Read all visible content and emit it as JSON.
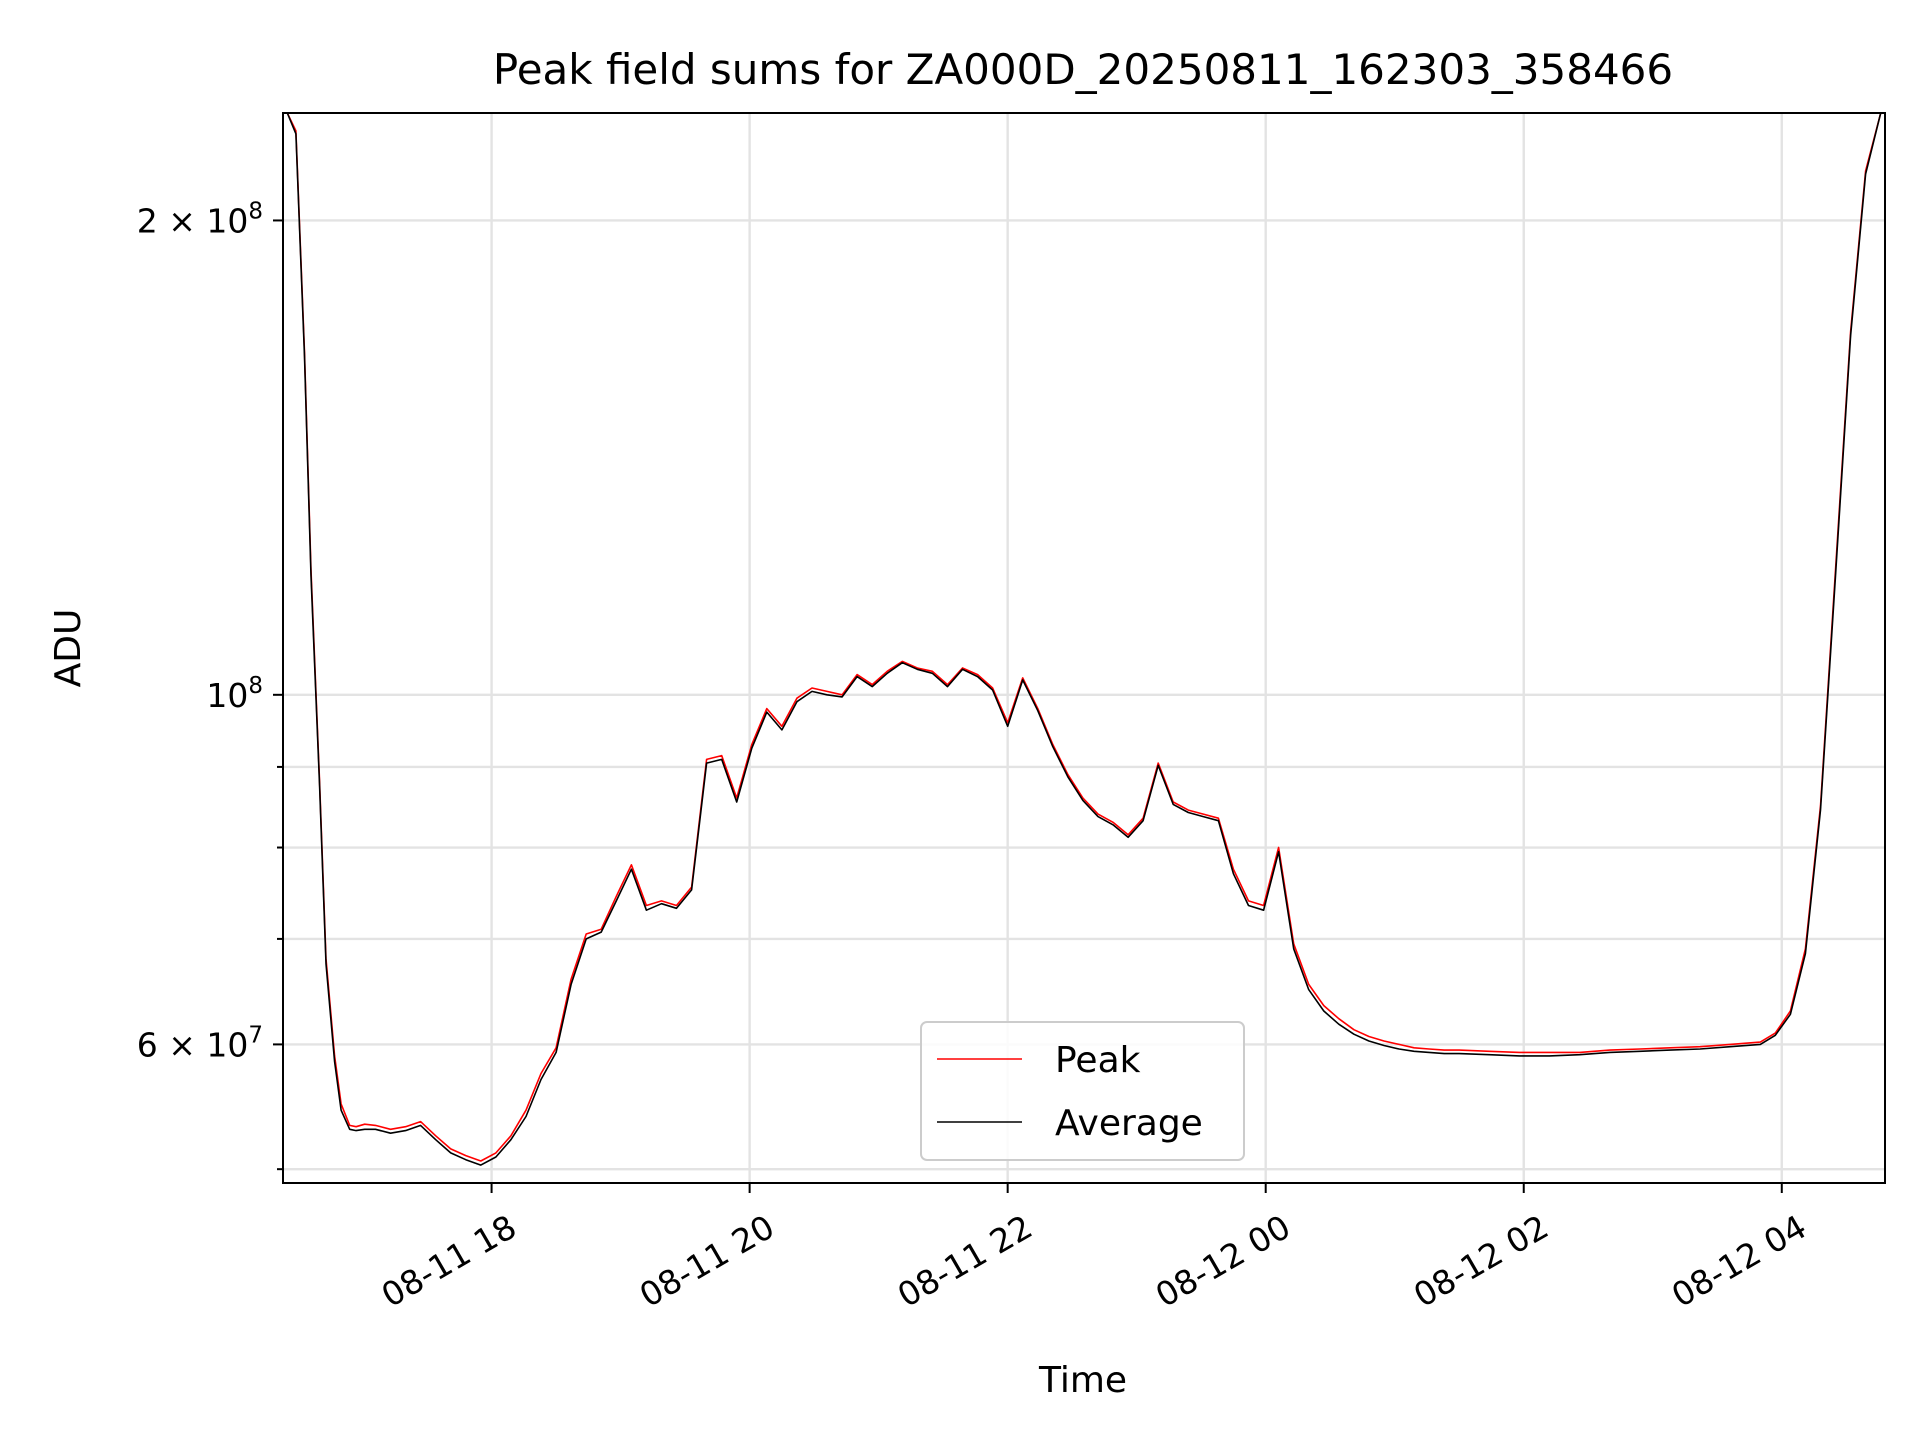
{
  "chart_data": {
    "type": "line",
    "title": "Peak field sums for ZA000D_20250811_162303_358466",
    "xlabel": "Time",
    "ylabel": "ADU",
    "xlim": [
      "2025-08-11 16:23",
      "2025-08-12 04:48"
    ],
    "ylim": [
      49000000,
      234000000
    ],
    "yscale": "log",
    "grid": true,
    "legend": "lower-center",
    "x_ticks": [
      {
        "value": "2025-08-11 18:00",
        "label": "08-11 18"
      },
      {
        "value": "2025-08-11 20:00",
        "label": "08-11 20"
      },
      {
        "value": "2025-08-11 22:00",
        "label": "08-11 22"
      },
      {
        "value": "2025-08-12 00:00",
        "label": "08-12 00"
      },
      {
        "value": "2025-08-12 02:00",
        "label": "08-12 02"
      },
      {
        "value": "2025-08-12 04:00",
        "label": "08-12 04"
      }
    ],
    "y_major_ticks": [
      {
        "value": 60000000,
        "label": "6 × 10",
        "exp": "7"
      },
      {
        "value": 100000000,
        "label": "10",
        "exp": "8"
      },
      {
        "value": 200000000,
        "label": "2 × 10",
        "exp": "8"
      }
    ],
    "y_minor_ticks": [
      50000000,
      70000000,
      80000000,
      90000000
    ],
    "series": [
      {
        "name": "Peak",
        "color": "#ff0000",
        "x": [
          "2025-08-11 16:25",
          "2025-08-11 16:29",
          "2025-08-11 16:33",
          "2025-08-11 16:36",
          "2025-08-11 16:40",
          "2025-08-11 16:43",
          "2025-08-11 16:47",
          "2025-08-11 16:50",
          "2025-08-11 16:54",
          "2025-08-11 16:57",
          "2025-08-11 17:01",
          "2025-08-11 17:06",
          "2025-08-11 17:13",
          "2025-08-11 17:20",
          "2025-08-11 17:27",
          "2025-08-11 17:34",
          "2025-08-11 17:41",
          "2025-08-11 17:48",
          "2025-08-11 17:55",
          "2025-08-11 18:02",
          "2025-08-11 18:09",
          "2025-08-11 18:16",
          "2025-08-11 18:23",
          "2025-08-11 18:30",
          "2025-08-11 18:37",
          "2025-08-11 18:44",
          "2025-08-11 18:51",
          "2025-08-11 18:58",
          "2025-08-11 19:05",
          "2025-08-11 19:12",
          "2025-08-11 19:19",
          "2025-08-11 19:26",
          "2025-08-11 19:33",
          "2025-08-11 19:40",
          "2025-08-11 19:47",
          "2025-08-11 19:54",
          "2025-08-11 20:01",
          "2025-08-11 20:08",
          "2025-08-11 20:15",
          "2025-08-11 20:22",
          "2025-08-11 20:29",
          "2025-08-11 20:36",
          "2025-08-11 20:43",
          "2025-08-11 20:50",
          "2025-08-11 20:57",
          "2025-08-11 21:04",
          "2025-08-11 21:11",
          "2025-08-11 21:18",
          "2025-08-11 21:25",
          "2025-08-11 21:32",
          "2025-08-11 21:39",
          "2025-08-11 21:46",
          "2025-08-11 21:53",
          "2025-08-11 22:00",
          "2025-08-11 22:07",
          "2025-08-11 22:14",
          "2025-08-11 22:21",
          "2025-08-11 22:28",
          "2025-08-11 22:35",
          "2025-08-11 22:42",
          "2025-08-11 22:49",
          "2025-08-11 22:56",
          "2025-08-11 23:03",
          "2025-08-11 23:10",
          "2025-08-11 23:17",
          "2025-08-11 23:24",
          "2025-08-11 23:31",
          "2025-08-11 23:38",
          "2025-08-11 23:45",
          "2025-08-11 23:52",
          "2025-08-11 23:59",
          "2025-08-12 00:06",
          "2025-08-12 00:13",
          "2025-08-12 00:20",
          "2025-08-12 00:27",
          "2025-08-12 00:34",
          "2025-08-12 00:41",
          "2025-08-12 00:48",
          "2025-08-12 00:55",
          "2025-08-12 01:02",
          "2025-08-12 01:09",
          "2025-08-12 01:16",
          "2025-08-12 01:23",
          "2025-08-12 01:30",
          "2025-08-12 01:44",
          "2025-08-12 01:58",
          "2025-08-12 02:12",
          "2025-08-12 02:26",
          "2025-08-12 02:40",
          "2025-08-12 02:54",
          "2025-08-12 03:08",
          "2025-08-12 03:22",
          "2025-08-12 03:36",
          "2025-08-12 03:50",
          "2025-08-12 03:57",
          "2025-08-12 04:04",
          "2025-08-12 04:11",
          "2025-08-12 04:18",
          "2025-08-12 04:25",
          "2025-08-12 04:32",
          "2025-08-12 04:39",
          "2025-08-12 04:46"
        ],
        "y": [
          234000000,
          228000000,
          165000000,
          120000000,
          88000000,
          68000000,
          59000000,
          55000000,
          53300000,
          53200000,
          53400000,
          53300000,
          53000000,
          53200000,
          53600000,
          52500000,
          51500000,
          51000000,
          50600000,
          51200000,
          52500000,
          54500000,
          57500000,
          59700000,
          66000000,
          70500000,
          71000000,
          74500000,
          78000000,
          73500000,
          74000000,
          73500000,
          75500000,
          91000000,
          91500000,
          86000000,
          93000000,
          98000000,
          95500000,
          99500000,
          101000000,
          100500000,
          100000000,
          103000000,
          101500000,
          103500000,
          105000000,
          104000000,
          103500000,
          101500000,
          104000000,
          103000000,
          101000000,
          96000000,
          102500000,
          98000000,
          93000000,
          89000000,
          86000000,
          84000000,
          83000000,
          81500000,
          83500000,
          90500000,
          85500000,
          84500000,
          84000000,
          83500000,
          77500000,
          74000000,
          73500000,
          80000000,
          69500000,
          65500000,
          63500000,
          62300000,
          61300000,
          60700000,
          60300000,
          60000000,
          59700000,
          59600000,
          59500000,
          59500000,
          59400000,
          59300000,
          59300000,
          59300000,
          59500000,
          59600000,
          59700000,
          59800000,
          60000000,
          60200000,
          61000000,
          63000000,
          69000000,
          85000000,
          120000000,
          170000000,
          215000000,
          234000000
        ]
      },
      {
        "name": "Average",
        "color": "#000000",
        "x": [
          "2025-08-11 16:25",
          "2025-08-11 16:29",
          "2025-08-11 16:33",
          "2025-08-11 16:36",
          "2025-08-11 16:40",
          "2025-08-11 16:43",
          "2025-08-11 16:47",
          "2025-08-11 16:50",
          "2025-08-11 16:54",
          "2025-08-11 16:57",
          "2025-08-11 17:01",
          "2025-08-11 17:06",
          "2025-08-11 17:13",
          "2025-08-11 17:20",
          "2025-08-11 17:27",
          "2025-08-11 17:34",
          "2025-08-11 17:41",
          "2025-08-11 17:48",
          "2025-08-11 17:55",
          "2025-08-11 18:02",
          "2025-08-11 18:09",
          "2025-08-11 18:16",
          "2025-08-11 18:23",
          "2025-08-11 18:30",
          "2025-08-11 18:37",
          "2025-08-11 18:44",
          "2025-08-11 18:51",
          "2025-08-11 18:58",
          "2025-08-11 19:05",
          "2025-08-11 19:12",
          "2025-08-11 19:19",
          "2025-08-11 19:26",
          "2025-08-11 19:33",
          "2025-08-11 19:40",
          "2025-08-11 19:47",
          "2025-08-11 19:54",
          "2025-08-11 20:01",
          "2025-08-11 20:08",
          "2025-08-11 20:15",
          "2025-08-11 20:22",
          "2025-08-11 20:29",
          "2025-08-11 20:36",
          "2025-08-11 20:43",
          "2025-08-11 20:50",
          "2025-08-11 20:57",
          "2025-08-11 21:04",
          "2025-08-11 21:11",
          "2025-08-11 21:18",
          "2025-08-11 21:25",
          "2025-08-11 21:32",
          "2025-08-11 21:39",
          "2025-08-11 21:46",
          "2025-08-11 21:53",
          "2025-08-11 22:00",
          "2025-08-11 22:07",
          "2025-08-11 22:14",
          "2025-08-11 22:21",
          "2025-08-11 22:28",
          "2025-08-11 22:35",
          "2025-08-11 22:42",
          "2025-08-11 22:49",
          "2025-08-11 22:56",
          "2025-08-11 23:03",
          "2025-08-11 23:10",
          "2025-08-11 23:17",
          "2025-08-11 23:24",
          "2025-08-11 23:31",
          "2025-08-11 23:38",
          "2025-08-11 23:45",
          "2025-08-11 23:52",
          "2025-08-11 23:59",
          "2025-08-12 00:06",
          "2025-08-12 00:13",
          "2025-08-12 00:20",
          "2025-08-12 00:27",
          "2025-08-12 00:34",
          "2025-08-12 00:41",
          "2025-08-12 00:48",
          "2025-08-12 00:55",
          "2025-08-12 01:02",
          "2025-08-12 01:09",
          "2025-08-12 01:16",
          "2025-08-12 01:23",
          "2025-08-12 01:30",
          "2025-08-12 01:44",
          "2025-08-12 01:58",
          "2025-08-12 02:12",
          "2025-08-12 02:26",
          "2025-08-12 02:40",
          "2025-08-12 02:54",
          "2025-08-12 03:08",
          "2025-08-12 03:22",
          "2025-08-12 03:36",
          "2025-08-12 03:50",
          "2025-08-12 03:57",
          "2025-08-12 04:04",
          "2025-08-12 04:11",
          "2025-08-12 04:18",
          "2025-08-12 04:25",
          "2025-08-12 04:32",
          "2025-08-12 04:39",
          "2025-08-12 04:46"
        ],
        "y": [
          234000000,
          227000000,
          164000000,
          119000000,
          87500000,
          67500000,
          58500000,
          54500000,
          53000000,
          52900000,
          53000000,
          53000000,
          52700000,
          52900000,
          53300000,
          52200000,
          51200000,
          50700000,
          50300000,
          50900000,
          52200000,
          54000000,
          57000000,
          59300000,
          65500000,
          70000000,
          70700000,
          74000000,
          77500000,
          73000000,
          73700000,
          73200000,
          75200000,
          90500000,
          91000000,
          85500000,
          92500000,
          97500000,
          95000000,
          99000000,
          100500000,
          100000000,
          99700000,
          102700000,
          101200000,
          103200000,
          104800000,
          103800000,
          103200000,
          101200000,
          103800000,
          102700000,
          100700000,
          95500000,
          102200000,
          97700000,
          92700000,
          88700000,
          85700000,
          83700000,
          82700000,
          81200000,
          83200000,
          90200000,
          85200000,
          84200000,
          83700000,
          83200000,
          77000000,
          73500000,
          73000000,
          79500000,
          69000000,
          65000000,
          63000000,
          61800000,
          60900000,
          60300000,
          59900000,
          59600000,
          59400000,
          59300000,
          59200000,
          59200000,
          59100000,
          59000000,
          59000000,
          59100000,
          59300000,
          59400000,
          59500000,
          59600000,
          59800000,
          60000000,
          60800000,
          62700000,
          68500000,
          84500000,
          119000000,
          169000000,
          214000000,
          234000000
        ]
      }
    ]
  }
}
